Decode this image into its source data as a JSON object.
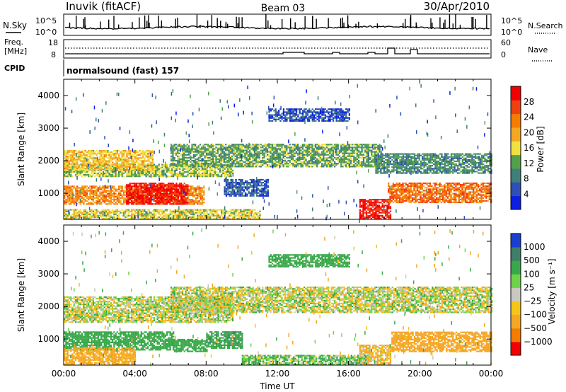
{
  "header": {
    "station": "Inuvik (fitACF)",
    "beam": "Beam 03",
    "date": "30/Apr/2010"
  },
  "panels": {
    "nsky": {
      "left_label": "N.Sky",
      "right_label": "N.Search",
      "left_ticks": [
        "10^5",
        "10^0"
      ],
      "right_ticks": [
        "10^5",
        "10^0"
      ]
    },
    "freq": {
      "left_label_1": "Freq.",
      "left_label_2": "[MHz]",
      "right_label": "Nave",
      "left_ticks": [
        "18",
        "8"
      ],
      "right_ticks": [
        "60",
        "0"
      ]
    },
    "cpid": {
      "label": "CPID",
      "text": "normalsound (fast) 157"
    }
  },
  "colors": {
    "power_scale": [
      "#0a1ee6",
      "#2e4fb5",
      "#3f7f7a",
      "#54a04a",
      "#f0e040",
      "#f5a623",
      "#f57c00",
      "#f04010",
      "#f40000"
    ],
    "velocity_scale": [
      "#1a3fd0",
      "#3f7f6a",
      "#3aa84a",
      "#6fd34a",
      "#c8c8c0",
      "#f5c518",
      "#f5a623",
      "#f57c00",
      "#f40000"
    ]
  },
  "chart_data": [
    {
      "type": "heatmap",
      "name": "power",
      "title": "",
      "xlabel": "",
      "ylabel": "Slant Range [km]",
      "xlim": [
        0,
        24
      ],
      "ylim": [
        200,
        4500
      ],
      "yticks": [
        "1000",
        "2000",
        "3000",
        "4000"
      ],
      "colorbar": {
        "label": "Power [dB]",
        "ticks": [
          "28",
          "24",
          "20",
          "16",
          "12",
          "8",
          "4"
        ],
        "range": [
          0,
          32
        ]
      },
      "bands": [
        {
          "t_start": 0.0,
          "t_end": 7.9,
          "r_low": 650,
          "r_high": 1200,
          "value": 22
        },
        {
          "t_start": 3.5,
          "t_end": 7.0,
          "r_low": 650,
          "r_high": 1300,
          "value": 30
        },
        {
          "t_start": 0.0,
          "t_end": 9.5,
          "r_low": 1500,
          "r_high": 1900,
          "value": 14
        },
        {
          "t_start": 0.0,
          "t_end": 5.0,
          "r_low": 1700,
          "r_high": 2300,
          "value": 18
        },
        {
          "t_start": 6.0,
          "t_end": 17.8,
          "r_low": 1800,
          "r_high": 2500,
          "value": 12
        },
        {
          "t_start": 17.5,
          "t_end": 24.0,
          "r_low": 1600,
          "r_high": 2200,
          "value": 10
        },
        {
          "t_start": 16.6,
          "t_end": 18.4,
          "r_low": 200,
          "r_high": 800,
          "value": 30
        },
        {
          "t_start": 18.2,
          "t_end": 24.0,
          "r_low": 700,
          "r_high": 1300,
          "value": 24
        },
        {
          "t_start": 0.0,
          "t_end": 11.0,
          "r_low": 200,
          "r_high": 500,
          "value": 16
        },
        {
          "t_start": 9.0,
          "t_end": 11.5,
          "r_low": 900,
          "r_high": 1400,
          "value": 6
        },
        {
          "t_start": 11.5,
          "t_end": 16.0,
          "r_low": 3200,
          "r_high": 3600,
          "value": 5
        }
      ]
    },
    {
      "type": "heatmap",
      "name": "velocity",
      "title": "",
      "xlabel": "Time UT",
      "ylabel": "Slant Range [km]",
      "xlim": [
        0,
        24
      ],
      "ylim": [
        200,
        4500
      ],
      "xticks": [
        "00:00",
        "04:00",
        "08:00",
        "12:00",
        "16:00",
        "20:00",
        "00:00"
      ],
      "yticks": [
        "1000",
        "2000",
        "3000",
        "4000"
      ],
      "colorbar": {
        "label": "Velocity [m s⁻¹]",
        "ticks": [
          "1000",
          "500",
          "100",
          "25",
          "−25",
          "−100",
          "−500",
          "−1000"
        ]
      },
      "bands": [
        {
          "t_start": 0.0,
          "t_end": 6.2,
          "r_low": 650,
          "r_high": 1200,
          "value": 300
        },
        {
          "t_start": 6.2,
          "t_end": 8.0,
          "r_low": 600,
          "r_high": 1000,
          "value": 300
        },
        {
          "t_start": 0.0,
          "t_end": 4.0,
          "r_low": 200,
          "r_high": 700,
          "value": -200
        },
        {
          "t_start": 8.0,
          "t_end": 10.0,
          "r_low": 700,
          "r_high": 1200,
          "value": 400
        },
        {
          "t_start": 0.0,
          "t_end": 9.5,
          "r_low": 1500,
          "r_high": 2300,
          "value": 0
        },
        {
          "t_start": 6.0,
          "t_end": 24.0,
          "r_low": 1800,
          "r_high": 2600,
          "value": 0
        },
        {
          "t_start": 16.6,
          "t_end": 18.4,
          "r_low": 200,
          "r_high": 800,
          "value": -100
        },
        {
          "t_start": 18.4,
          "t_end": 24.0,
          "r_low": 600,
          "r_high": 1200,
          "value": -300
        },
        {
          "t_start": 11.5,
          "t_end": 16.0,
          "r_low": 3200,
          "r_high": 3600,
          "value": 300
        },
        {
          "t_start": 10.0,
          "t_end": 17.0,
          "r_low": 200,
          "r_high": 500,
          "value": 100
        }
      ]
    }
  ]
}
